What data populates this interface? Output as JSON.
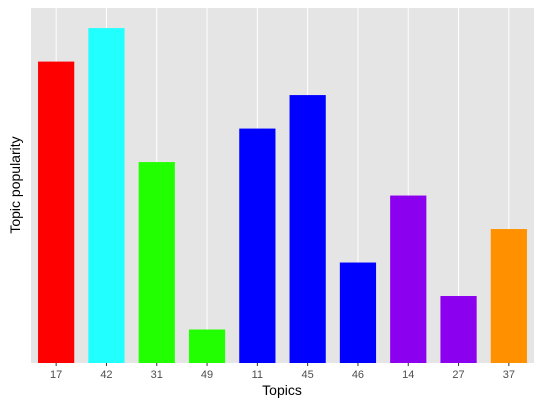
{
  "chart_data": {
    "type": "bar",
    "title": "",
    "xlabel": "Topics",
    "ylabel": "Topic popularity",
    "categories": [
      "17",
      "42",
      "31",
      "49",
      "11",
      "45",
      "46",
      "14",
      "27",
      "37"
    ],
    "values": [
      9,
      10,
      6,
      1,
      7,
      8,
      3,
      5,
      2,
      4
    ],
    "bar_colors": [
      "#FF0000",
      "#22FFFF",
      "#22FF00",
      "#22FF00",
      "#0000FF",
      "#0000FF",
      "#0000FF",
      "#8B00EE",
      "#8B00EE",
      "#FF9100"
    ],
    "ylim": [
      0,
      10.6
    ],
    "y_ticks_shown": false,
    "grid": true,
    "panel_background": "#E5E5E5",
    "grid_color": "#FFFFFF"
  }
}
